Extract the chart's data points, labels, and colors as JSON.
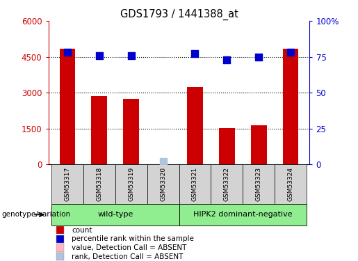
{
  "title": "GDS1793 / 1441388_at",
  "samples": [
    "GSM53317",
    "GSM53318",
    "GSM53319",
    "GSM53320",
    "GSM53321",
    "GSM53322",
    "GSM53323",
    "GSM53324"
  ],
  "counts": [
    4850,
    2850,
    2750,
    0,
    3250,
    1530,
    1630,
    4850
  ],
  "percentile_ranks_pct": [
    78,
    76,
    76,
    null,
    77,
    73,
    75,
    78
  ],
  "absent_value_count": [
    null,
    null,
    null,
    150,
    null,
    null,
    null,
    null
  ],
  "absent_rank_pct": [
    null,
    null,
    null,
    2,
    null,
    null,
    null,
    null
  ],
  "ylim_left": [
    0,
    6000
  ],
  "ylim_right": [
    0,
    100
  ],
  "yticks_left": [
    0,
    1500,
    3000,
    4500,
    6000
  ],
  "ytick_labels_left": [
    "0",
    "1500",
    "3000",
    "4500",
    "6000"
  ],
  "yticks_right": [
    0,
    25,
    50,
    75,
    100
  ],
  "ytick_labels_right": [
    "0",
    "25",
    "50",
    "75",
    "100%"
  ],
  "bar_color": "#CC0000",
  "dot_color": "#0000CC",
  "absent_val_color": "#FFB6C1",
  "absent_rank_color": "#B0C4DE",
  "grid_color": "#000000",
  "genotype_label": "genotype/variation",
  "wild_type_label": "wild-type",
  "hipk2_label": "HIPK2 dominant-negative",
  "group_color": "#90EE90",
  "sample_box_color": "#d3d3d3",
  "legend_items": [
    {
      "label": "count",
      "color": "#CC0000"
    },
    {
      "label": "percentile rank within the sample",
      "color": "#0000CC"
    },
    {
      "label": "value, Detection Call = ABSENT",
      "color": "#FFB6C1"
    },
    {
      "label": "rank, Detection Call = ABSENT",
      "color": "#B0C4DE"
    }
  ],
  "bar_width": 0.5,
  "dot_size": 60,
  "fig_bg": "#ffffff"
}
